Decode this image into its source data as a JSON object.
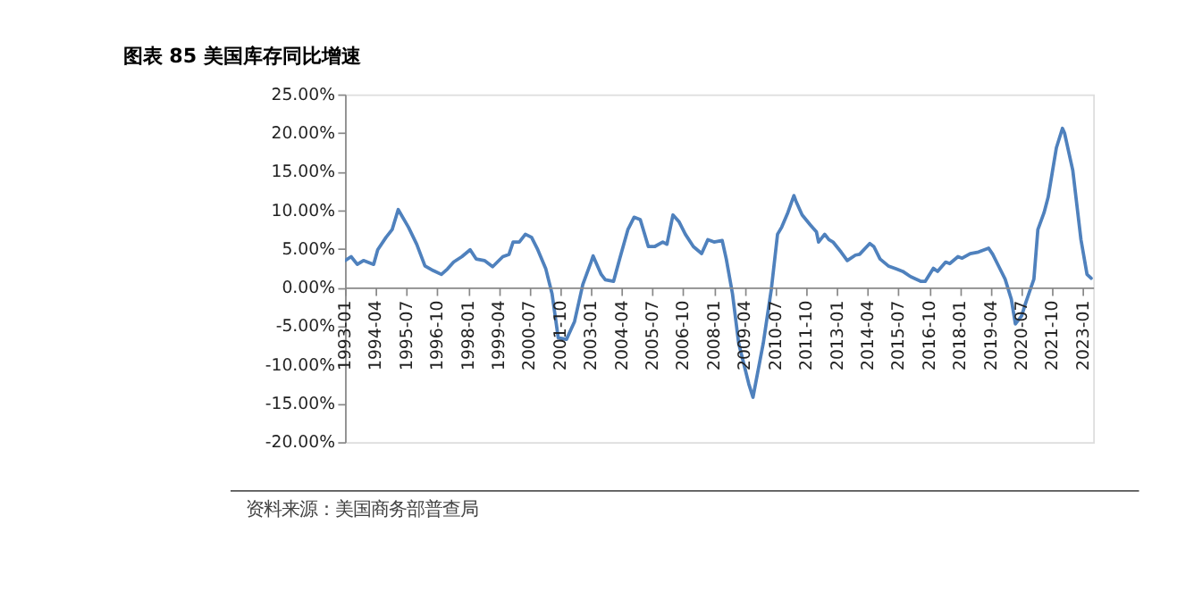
{
  "chart_data": {
    "type": "line",
    "title": "图表 85 美国库存同比增速",
    "x": [
      "1993-01",
      "1993-04",
      "1993-07",
      "1993-10",
      "1994-03",
      "1994-05",
      "1994-09",
      "1994-12",
      "1995-03",
      "1995-08",
      "1995-12",
      "1996-04",
      "1996-08",
      "1996-12",
      "1997-03",
      "1997-06",
      "1997-10",
      "1998-02",
      "1998-05",
      "1998-09",
      "1999-01",
      "1999-06",
      "1999-09",
      "1999-11",
      "2000-02",
      "2000-05",
      "2000-08",
      "2000-11",
      "2001-03",
      "2001-06",
      "2001-09",
      "2002-01",
      "2002-05",
      "2002-09",
      "2003-01",
      "2003-02",
      "2003-06",
      "2003-08",
      "2003-12",
      "2004-03",
      "2004-07",
      "2004-10",
      "2005-01",
      "2005-05",
      "2005-08",
      "2005-12",
      "2006-02",
      "2006-05",
      "2006-08",
      "2006-11",
      "2007-03",
      "2007-07",
      "2007-10",
      "2008-01",
      "2008-05",
      "2008-07",
      "2008-10",
      "2009-01",
      "2009-06",
      "2009-08",
      "2010-01",
      "2010-05",
      "2010-08",
      "2010-10",
      "2011-01",
      "2011-04",
      "2011-05",
      "2011-08",
      "2011-12",
      "2012-03",
      "2012-04",
      "2012-07",
      "2012-09",
      "2012-11",
      "2013-03",
      "2013-06",
      "2013-10",
      "2013-12",
      "2014-05",
      "2014-07",
      "2014-10",
      "2015-02",
      "2015-06",
      "2015-09",
      "2016-01",
      "2016-06",
      "2016-08",
      "2016-12",
      "2017-02",
      "2017-06",
      "2017-08",
      "2017-12",
      "2018-02",
      "2018-06",
      "2018-10",
      "2019-03",
      "2019-05",
      "2019-08",
      "2019-11",
      "2020-02",
      "2020-04",
      "2020-07",
      "2020-09",
      "2021-01",
      "2021-03",
      "2021-06",
      "2021-08",
      "2021-10",
      "2021-12",
      "2022-03",
      "2022-04",
      "2022-08",
      "2022-12",
      "2023-03",
      "2023-05"
    ],
    "series": [
      {
        "color": "#4f81bd",
        "values": [
          3.5,
          4.0,
          3.0,
          3.5,
          3.0,
          4.9,
          6.5,
          7.5,
          10.1,
          7.8,
          5.6,
          2.8,
          2.2,
          1.7,
          2.4,
          3.3,
          4.0,
          4.9,
          3.7,
          3.5,
          2.7,
          4.0,
          4.3,
          5.9,
          5.9,
          6.9,
          6.5,
          4.9,
          2.4,
          -0.8,
          -6.5,
          -6.7,
          -4.4,
          0.4,
          3.3,
          4.1,
          1.7,
          1.0,
          0.8,
          3.7,
          7.5,
          9.1,
          8.8,
          5.3,
          5.3,
          5.9,
          5.6,
          9.4,
          8.5,
          6.9,
          5.3,
          4.4,
          6.2,
          5.9,
          6.1,
          3.7,
          -0.8,
          -7.2,
          -12.5,
          -14.2,
          -7.2,
          -0.2,
          6.9,
          7.8,
          9.7,
          11.9,
          11.2,
          9.4,
          8.1,
          7.2,
          5.9,
          6.9,
          6.2,
          5.9,
          4.6,
          3.5,
          4.2,
          4.3,
          5.7,
          5.3,
          3.7,
          2.8,
          2.4,
          2.1,
          1.4,
          0.8,
          0.8,
          2.5,
          2.1,
          3.3,
          3.1,
          4.0,
          3.8,
          4.4,
          4.6,
          5.1,
          4.3,
          2.7,
          1.1,
          -1.5,
          -4.7,
          -3.7,
          -2.0,
          1.1,
          7.5,
          9.7,
          11.7,
          14.9,
          18.1,
          20.6,
          20.0,
          15.2,
          6.2,
          1.7,
          1.2
        ]
      }
    ],
    "xlim": [
      "1993-01",
      "2023-06"
    ],
    "xticks": [
      "1993-01",
      "1994-04",
      "1995-07",
      "1996-10",
      "1998-01",
      "1999-04",
      "2000-07",
      "2001-10",
      "2003-01",
      "2004-04",
      "2005-07",
      "2006-10",
      "2008-01",
      "2009-04",
      "2010-07",
      "2011-10",
      "2013-01",
      "2014-04",
      "2015-07",
      "2016-10",
      "2018-01",
      "2019-04",
      "2020-07",
      "2021-10",
      "2023-01"
    ],
    "ylim": [
      -20,
      25
    ],
    "yticks": [
      {
        "value": -20,
        "label": "-20.00%"
      },
      {
        "value": -15,
        "label": "-15.00%"
      },
      {
        "value": -10,
        "label": "-10.00%"
      },
      {
        "value": -5,
        "label": "-5.00%"
      },
      {
        "value": 0,
        "label": "0.00%"
      },
      {
        "value": 5,
        "label": "5.00%"
      },
      {
        "value": 10,
        "label": "10.00%"
      },
      {
        "value": 15,
        "label": "15.00%"
      },
      {
        "value": 20,
        "label": "20.00%"
      },
      {
        "value": 25,
        "label": "25.00%"
      }
    ],
    "grid": false,
    "marker": "none",
    "line_style": "solid",
    "annotations": [
      "资料来源：美国商务部普查局"
    ]
  }
}
